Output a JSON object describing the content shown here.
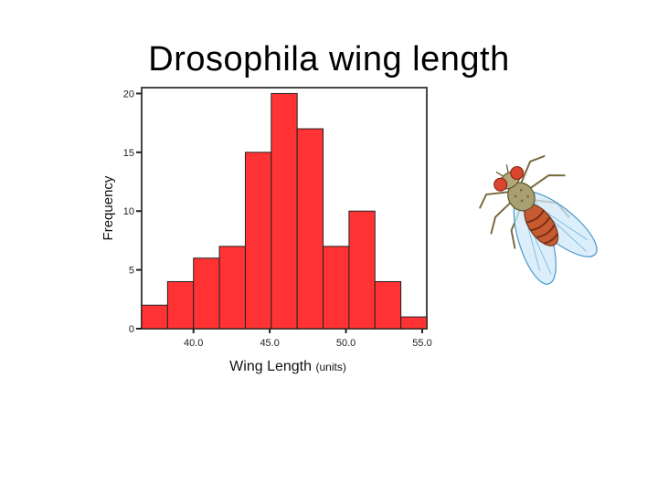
{
  "slide": {
    "title": "Drosophila wing length"
  },
  "chart_data": {
    "type": "bar",
    "title": "Drosophila wing length",
    "xlabel": "Wing Length",
    "xlabel_unit": "(units)",
    "ylabel": "Frequency",
    "bin_start": 36.6,
    "bin_width": 1.7,
    "values": [
      2,
      4,
      6,
      7,
      15,
      20,
      17,
      7,
      10,
      4,
      1
    ],
    "xlim": [
      36.6,
      55.3
    ],
    "ylim": [
      0,
      20.5
    ],
    "x_ticks": [
      {
        "value": 40.0,
        "label": "40.0"
      },
      {
        "value": 45.0,
        "label": "45.0"
      },
      {
        "value": 50.0,
        "label": "50.0"
      },
      {
        "value": 55.0,
        "label": "55.0"
      }
    ],
    "y_ticks": [
      {
        "value": 0,
        "label": "0"
      },
      {
        "value": 5,
        "label": "5"
      },
      {
        "value": 10,
        "label": "10"
      },
      {
        "value": 15,
        "label": "15"
      },
      {
        "value": 20,
        "label": "20"
      }
    ],
    "bar_color": "#ff3333",
    "grid": false
  },
  "illustration": {
    "icon": "fruit-fly-icon"
  }
}
